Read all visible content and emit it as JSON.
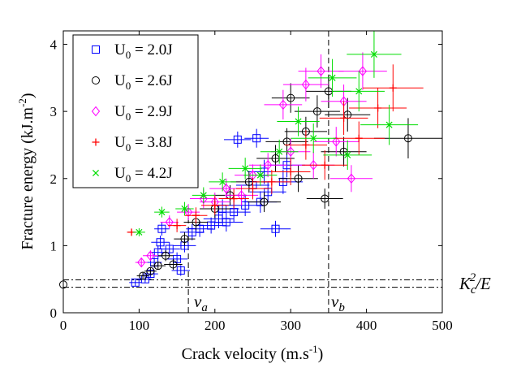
{
  "chart_data": {
    "type": "scatter",
    "title": "",
    "xlabel": "Crack velocity (m.s",
    "xlabel_sup": "-1",
    "xlabel_suffix": ")",
    "ylabel": "Fracture energy (kJ.m",
    "ylabel_sup": "-2",
    "ylabel_suffix": ")",
    "xlim": [
      0,
      500
    ],
    "ylim": [
      0,
      4.2
    ],
    "xticks": [
      0,
      100,
      200,
      300,
      400,
      500
    ],
    "yticks": [
      0,
      1,
      2,
      3,
      4
    ],
    "legend_position": "top-left",
    "legend_prefix": "U",
    "legend_sub": "0",
    "series": [
      {
        "name": "U0 = 2.0J",
        "label_value": " = 2.0J",
        "marker": "square",
        "color": "#0000ff",
        "points": [
          {
            "x": 95,
            "y": 0.45,
            "ex": 8,
            "ey": 0.05
          },
          {
            "x": 108,
            "y": 0.5,
            "ex": 8,
            "ey": 0.05
          },
          {
            "x": 115,
            "y": 0.58,
            "ex": 10,
            "ey": 0.06
          },
          {
            "x": 120,
            "y": 0.75,
            "ex": 10,
            "ey": 0.08
          },
          {
            "x": 125,
            "y": 0.9,
            "ex": 12,
            "ey": 0.1
          },
          {
            "x": 128,
            "y": 1.05,
            "ex": 12,
            "ey": 0.1
          },
          {
            "x": 130,
            "y": 1.25,
            "ex": 10,
            "ey": 0.1
          },
          {
            "x": 140,
            "y": 0.95,
            "ex": 14,
            "ey": 0.1
          },
          {
            "x": 150,
            "y": 0.8,
            "ex": 14,
            "ey": 0.1
          },
          {
            "x": 155,
            "y": 0.63,
            "ex": 12,
            "ey": 0.08
          },
          {
            "x": 160,
            "y": 1.0,
            "ex": 15,
            "ey": 0.1
          },
          {
            "x": 170,
            "y": 1.2,
            "ex": 16,
            "ey": 0.12
          },
          {
            "x": 180,
            "y": 1.25,
            "ex": 18,
            "ey": 0.12
          },
          {
            "x": 195,
            "y": 1.3,
            "ex": 20,
            "ey": 0.12
          },
          {
            "x": 205,
            "y": 1.4,
            "ex": 20,
            "ey": 0.14
          },
          {
            "x": 210,
            "y": 1.55,
            "ex": 22,
            "ey": 0.14
          },
          {
            "x": 215,
            "y": 1.35,
            "ex": 22,
            "ey": 0.14
          },
          {
            "x": 225,
            "y": 1.5,
            "ex": 22,
            "ey": 0.15
          },
          {
            "x": 230,
            "y": 2.58,
            "ex": 18,
            "ey": 0.12
          },
          {
            "x": 240,
            "y": 1.6,
            "ex": 24,
            "ey": 0.16
          },
          {
            "x": 250,
            "y": 1.9,
            "ex": 22,
            "ey": 0.16
          },
          {
            "x": 255,
            "y": 2.6,
            "ex": 16,
            "ey": 0.14
          },
          {
            "x": 260,
            "y": 1.65,
            "ex": 22,
            "ey": 0.16
          },
          {
            "x": 265,
            "y": 2.1,
            "ex": 22,
            "ey": 0.18
          },
          {
            "x": 270,
            "y": 1.8,
            "ex": 24,
            "ey": 0.16
          },
          {
            "x": 280,
            "y": 1.25,
            "ex": 20,
            "ey": 0.12
          },
          {
            "x": 290,
            "y": 1.95,
            "ex": 26,
            "ey": 0.18
          },
          {
            "x": 295,
            "y": 2.2,
            "ex": 24,
            "ey": 0.18
          }
        ]
      },
      {
        "name": "U0 = 2.6J",
        "label_value": " = 2.6J",
        "marker": "circle",
        "color": "#000000",
        "points": [
          {
            "x": 0,
            "y": 0.42,
            "ex": 0,
            "ey": 0.04
          },
          {
            "x": 105,
            "y": 0.55,
            "ex": 8,
            "ey": 0.05
          },
          {
            "x": 115,
            "y": 0.62,
            "ex": 8,
            "ey": 0.05
          },
          {
            "x": 125,
            "y": 0.7,
            "ex": 10,
            "ey": 0.06
          },
          {
            "x": 135,
            "y": 0.85,
            "ex": 10,
            "ey": 0.08
          },
          {
            "x": 145,
            "y": 0.72,
            "ex": 12,
            "ey": 0.08
          },
          {
            "x": 160,
            "y": 1.1,
            "ex": 14,
            "ey": 0.1
          },
          {
            "x": 175,
            "y": 1.35,
            "ex": 16,
            "ey": 0.12
          },
          {
            "x": 200,
            "y": 1.55,
            "ex": 20,
            "ey": 0.14
          },
          {
            "x": 220,
            "y": 1.75,
            "ex": 22,
            "ey": 0.15
          },
          {
            "x": 245,
            "y": 1.95,
            "ex": 24,
            "ey": 0.16
          },
          {
            "x": 265,
            "y": 1.65,
            "ex": 22,
            "ey": 0.15
          },
          {
            "x": 280,
            "y": 2.3,
            "ex": 25,
            "ey": 0.2
          },
          {
            "x": 295,
            "y": 2.55,
            "ex": 28,
            "ey": 0.2
          },
          {
            "x": 300,
            "y": 3.2,
            "ex": 25,
            "ey": 0.22
          },
          {
            "x": 310,
            "y": 2.0,
            "ex": 26,
            "ey": 0.2
          },
          {
            "x": 320,
            "y": 2.7,
            "ex": 28,
            "ey": 0.22
          },
          {
            "x": 335,
            "y": 3.0,
            "ex": 30,
            "ey": 0.24
          },
          {
            "x": 345,
            "y": 1.7,
            "ex": 24,
            "ey": 0.15
          },
          {
            "x": 350,
            "y": 3.3,
            "ex": 30,
            "ey": 0.25
          },
          {
            "x": 370,
            "y": 2.4,
            "ex": 30,
            "ey": 0.22
          },
          {
            "x": 375,
            "y": 2.95,
            "ex": 30,
            "ey": 0.25
          },
          {
            "x": 455,
            "y": 2.6,
            "ex": 45,
            "ey": 0.3
          }
        ]
      },
      {
        "name": "U0 = 2.9J",
        "label_value": " = 2.9J",
        "marker": "diamond",
        "color": "#ff00ff",
        "points": [
          {
            "x": 103,
            "y": 0.75,
            "ex": 8,
            "ey": 0.06
          },
          {
            "x": 115,
            "y": 0.85,
            "ex": 10,
            "ey": 0.08
          },
          {
            "x": 140,
            "y": 1.35,
            "ex": 12,
            "ey": 0.1
          },
          {
            "x": 165,
            "y": 1.5,
            "ex": 15,
            "ey": 0.12
          },
          {
            "x": 185,
            "y": 1.7,
            "ex": 18,
            "ey": 0.14
          },
          {
            "x": 200,
            "y": 1.65,
            "ex": 20,
            "ey": 0.14
          },
          {
            "x": 215,
            "y": 1.85,
            "ex": 22,
            "ey": 0.15
          },
          {
            "x": 235,
            "y": 1.75,
            "ex": 22,
            "ey": 0.15
          },
          {
            "x": 250,
            "y": 2.05,
            "ex": 24,
            "ey": 0.16
          },
          {
            "x": 270,
            "y": 2.2,
            "ex": 25,
            "ey": 0.18
          },
          {
            "x": 290,
            "y": 3.1,
            "ex": 25,
            "ey": 0.22
          },
          {
            "x": 300,
            "y": 2.4,
            "ex": 26,
            "ey": 0.2
          },
          {
            "x": 320,
            "y": 3.4,
            "ex": 30,
            "ey": 0.25
          },
          {
            "x": 330,
            "y": 2.2,
            "ex": 28,
            "ey": 0.2
          },
          {
            "x": 340,
            "y": 3.6,
            "ex": 30,
            "ey": 0.25
          },
          {
            "x": 360,
            "y": 2.55,
            "ex": 30,
            "ey": 0.22
          },
          {
            "x": 370,
            "y": 3.15,
            "ex": 30,
            "ey": 0.25
          },
          {
            "x": 380,
            "y": 2.0,
            "ex": 28,
            "ey": 0.2
          },
          {
            "x": 395,
            "y": 3.6,
            "ex": 32,
            "ey": 0.28
          }
        ]
      },
      {
        "name": "U0 = 3.8J",
        "label_value": " = 3.8J",
        "marker": "plus",
        "color": "#ff0000",
        "points": [
          {
            "x": 90,
            "y": 1.2,
            "ex": 6,
            "ey": 0.05
          },
          {
            "x": 150,
            "y": 1.3,
            "ex": 12,
            "ey": 0.1
          },
          {
            "x": 175,
            "y": 1.45,
            "ex": 15,
            "ey": 0.12
          },
          {
            "x": 200,
            "y": 1.6,
            "ex": 18,
            "ey": 0.14
          },
          {
            "x": 225,
            "y": 1.7,
            "ex": 20,
            "ey": 0.15
          },
          {
            "x": 250,
            "y": 1.85,
            "ex": 22,
            "ey": 0.16
          },
          {
            "x": 275,
            "y": 1.95,
            "ex": 24,
            "ey": 0.18
          },
          {
            "x": 300,
            "y": 2.1,
            "ex": 26,
            "ey": 0.2
          },
          {
            "x": 320,
            "y": 2.5,
            "ex": 28,
            "ey": 0.22
          },
          {
            "x": 345,
            "y": 2.2,
            "ex": 30,
            "ey": 0.22
          },
          {
            "x": 370,
            "y": 2.9,
            "ex": 32,
            "ey": 0.25
          },
          {
            "x": 390,
            "y": 2.6,
            "ex": 34,
            "ey": 0.25
          },
          {
            "x": 415,
            "y": 3.05,
            "ex": 38,
            "ey": 0.3
          },
          {
            "x": 435,
            "y": 3.35,
            "ex": 40,
            "ey": 0.35
          }
        ]
      },
      {
        "name": "U0 = 4.2J",
        "label_value": " = 4.2J",
        "marker": "cross",
        "color": "#00dd00",
        "points": [
          {
            "x": 100,
            "y": 1.2,
            "ex": 8,
            "ey": 0.06
          },
          {
            "x": 130,
            "y": 1.5,
            "ex": 10,
            "ey": 0.08
          },
          {
            "x": 160,
            "y": 1.55,
            "ex": 12,
            "ey": 0.1
          },
          {
            "x": 185,
            "y": 1.75,
            "ex": 15,
            "ey": 0.12
          },
          {
            "x": 210,
            "y": 1.95,
            "ex": 18,
            "ey": 0.14
          },
          {
            "x": 240,
            "y": 2.15,
            "ex": 22,
            "ey": 0.16
          },
          {
            "x": 260,
            "y": 2.05,
            "ex": 22,
            "ey": 0.16
          },
          {
            "x": 285,
            "y": 2.4,
            "ex": 25,
            "ey": 0.18
          },
          {
            "x": 310,
            "y": 2.85,
            "ex": 28,
            "ey": 0.22
          },
          {
            "x": 330,
            "y": 2.6,
            "ex": 30,
            "ey": 0.22
          },
          {
            "x": 355,
            "y": 3.5,
            "ex": 32,
            "ey": 0.28
          },
          {
            "x": 375,
            "y": 2.35,
            "ex": 32,
            "ey": 0.22
          },
          {
            "x": 390,
            "y": 3.3,
            "ex": 34,
            "ey": 0.3
          },
          {
            "x": 410,
            "y": 3.85,
            "ex": 36,
            "ey": 0.35
          },
          {
            "x": 430,
            "y": 2.8,
            "ex": 38,
            "ey": 0.3
          }
        ]
      }
    ],
    "reference_lines": {
      "horizontal": [
        0.38,
        0.49
      ],
      "vertical_va": 165,
      "vertical_vb": 350
    },
    "annotations": {
      "va_main": "v",
      "va_sub": "a",
      "vb_main": "v",
      "vb_sub": "b",
      "kc_main": "K",
      "kc_sub": "c",
      "kc_sup": "2",
      "kc_suffix": "/E"
    }
  }
}
